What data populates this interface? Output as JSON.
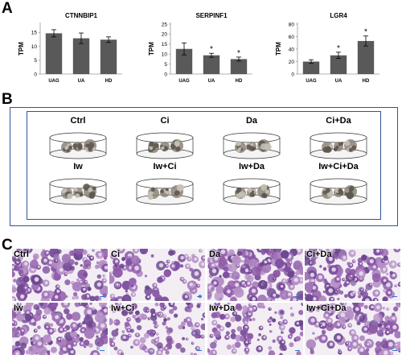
{
  "panels": {
    "a": "A",
    "b": "B",
    "c": "C"
  },
  "chart_data": [
    {
      "type": "bar",
      "title": "CTNNBIP1",
      "ylabel": "TPM",
      "categories": [
        "UAG",
        "UA",
        "HD"
      ],
      "values": [
        14.7,
        12.9,
        12.4
      ],
      "errors": [
        1.3,
        1.9,
        1.0
      ],
      "significance": [
        "",
        "",
        ""
      ],
      "yticks": [
        0,
        5,
        10,
        15
      ],
      "ylim": [
        0,
        18
      ]
    },
    {
      "type": "bar",
      "title": "SERPINF1",
      "ylabel": "TPM",
      "categories": [
        "UAG",
        "UA",
        "HD"
      ],
      "values": [
        12.6,
        9.4,
        7.5
      ],
      "errors": [
        3.0,
        1.0,
        1.0
      ],
      "significance": [
        "",
        "*",
        "*"
      ],
      "yticks": [
        0,
        5,
        10,
        15,
        20,
        25
      ],
      "ylim": [
        0,
        25
      ]
    },
    {
      "type": "bar",
      "title": "LGR4",
      "ylabel": "TPM",
      "categories": [
        "UAG",
        "UA",
        "HD"
      ],
      "values": [
        20,
        30,
        53
      ],
      "errors": [
        3,
        5,
        8
      ],
      "significance": [
        "",
        "*",
        "*"
      ],
      "yticks": [
        0,
        20,
        40,
        60,
        80
      ],
      "ylim": [
        0,
        80
      ]
    }
  ],
  "conditions": [
    "Ctrl",
    "Ci",
    "Da",
    "Ci+Da",
    "Iw",
    "Iw+Ci",
    "Iw+Da",
    "Iw+Ci+Da"
  ],
  "micro_labels": [
    "Ctrl",
    "Ci",
    "Da",
    "Ci+Da",
    "Iw",
    "Iw+Ci",
    "Iw+Da",
    "Iw+Ci+Da"
  ],
  "colors": {
    "bar": "#595959",
    "frame": "#2f5597",
    "stain": "#8f5aa8",
    "scalebar": "#1f7bd6"
  }
}
